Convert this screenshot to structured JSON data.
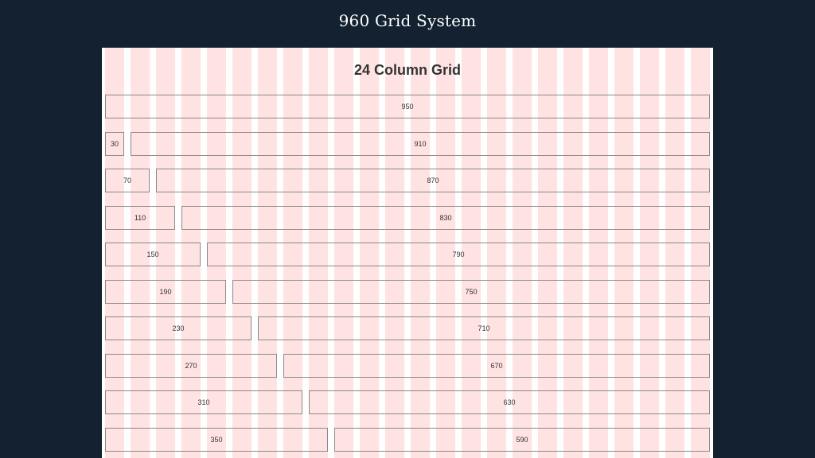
{
  "header": {
    "title": "960 Grid System"
  },
  "grid": {
    "heading": "24 Column Grid",
    "rows": [
      {
        "left": "950"
      },
      {
        "left": "30",
        "right": "910"
      },
      {
        "left": "70",
        "right": "870"
      },
      {
        "left": "110",
        "right": "830"
      },
      {
        "left": "150",
        "right": "790"
      },
      {
        "left": "190",
        "right": "750"
      },
      {
        "left": "230",
        "right": "710"
      },
      {
        "left": "270",
        "right": "670"
      },
      {
        "left": "310",
        "right": "630"
      },
      {
        "left": "350",
        "right": "590"
      }
    ]
  },
  "colors": {
    "background": "#132131",
    "column": "#ffe2e2",
    "gutter": "#fefefe",
    "box_border": "#8a8a8a"
  }
}
